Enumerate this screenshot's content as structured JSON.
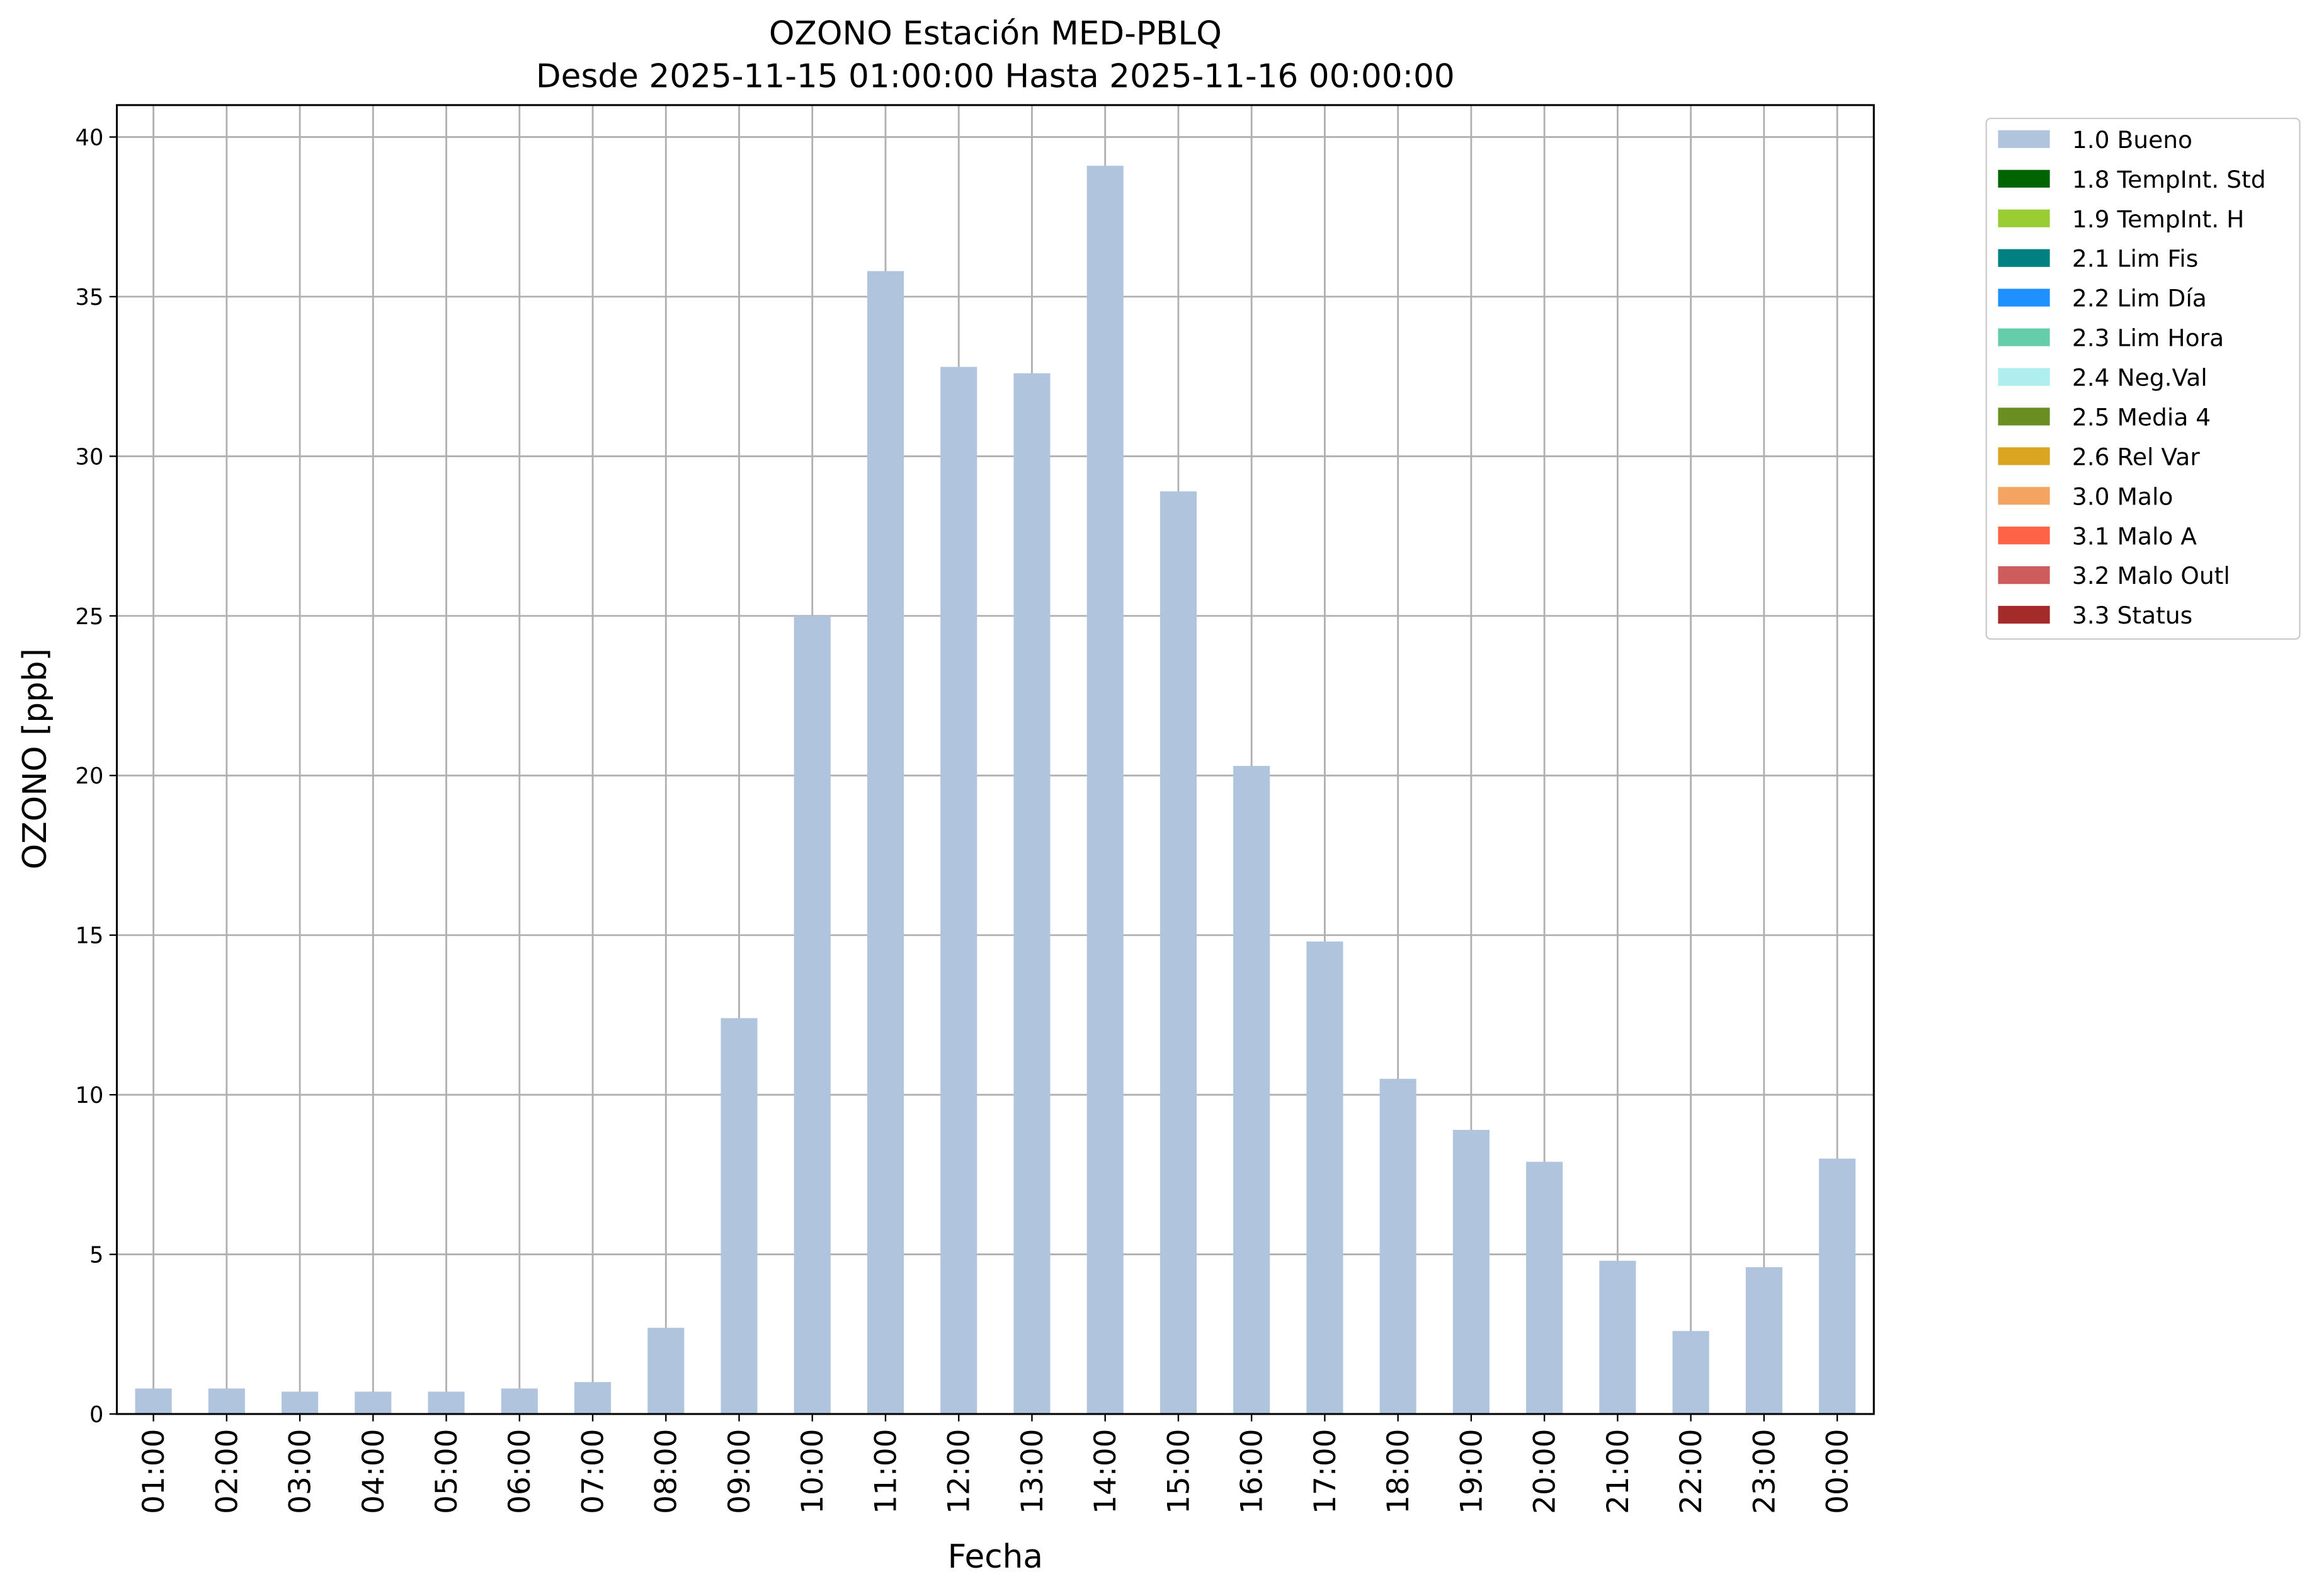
{
  "chart_data": {
    "type": "bar",
    "title": "OZONO Estación MED-PBLQ",
    "subtitle": "Desde 2025-11-15 01:00:00 Hasta 2025-11-16 00:00:00",
    "x_label": "Fecha",
    "y_label": "OZONO [ppb]",
    "categories": [
      "01:00",
      "02:00",
      "03:00",
      "04:00",
      "05:00",
      "06:00",
      "07:00",
      "08:00",
      "09:00",
      "10:00",
      "11:00",
      "12:00",
      "13:00",
      "14:00",
      "15:00",
      "16:00",
      "17:00",
      "18:00",
      "19:00",
      "20:00",
      "21:00",
      "22:00",
      "23:00",
      "00:00"
    ],
    "series": [
      {
        "name": "1.0 Bueno",
        "color": "#b0c4de",
        "values": [
          0.8,
          0.8,
          0.7,
          0.7,
          0.7,
          0.8,
          1.0,
          2.7,
          12.4,
          25.0,
          35.8,
          32.8,
          32.6,
          39.1,
          28.9,
          20.3,
          14.8,
          10.5,
          8.9,
          7.9,
          4.8,
          2.6,
          4.6,
          8.0
        ]
      }
    ],
    "legend": [
      {
        "name": "1.8 TempInt. Std",
        "color": "#006400"
      },
      {
        "name": "1.9 TempInt. H",
        "color": "#9acd32"
      },
      {
        "name": "2.1 Lim Fis",
        "color": "#008080"
      },
      {
        "name": "2.2 Lim Día",
        "color": "#1e90ff"
      },
      {
        "name": "2.3 Lim Hora",
        "color": "#66cdaa"
      },
      {
        "name": "2.4 Neg.Val",
        "color": "#afeeee"
      },
      {
        "name": "2.5 Media 4",
        "color": "#6b8e23"
      },
      {
        "name": "2.6 Rel Var",
        "color": "#daa520"
      },
      {
        "name": "3.0 Malo",
        "color": "#f4a460"
      },
      {
        "name": "3.1 Malo A",
        "color": "#ff6347"
      },
      {
        "name": "3.2 Malo Outl",
        "color": "#cd5c5c"
      },
      {
        "name": "3.3 Status",
        "color": "#a52a2a"
      }
    ],
    "ylim": [
      0,
      41.0
    ],
    "yticks": [
      0,
      5,
      10,
      15,
      20,
      25,
      30,
      35,
      40
    ],
    "grid": true,
    "legend_position": "outside-upper-right"
  }
}
